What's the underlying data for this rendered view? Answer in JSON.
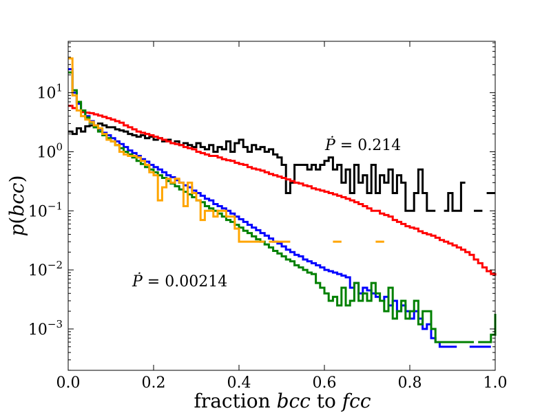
{
  "chart_data": {
    "type": "line",
    "style": "step-histogram",
    "title": "",
    "xlabel": "fraction bcc to fcc",
    "ylabel": "p(bcc)",
    "xlabel_parts": {
      "prefix": "fraction ",
      "var1": "bcc",
      "mid": " to ",
      "var2": "fcc"
    },
    "ylabel_parts": {
      "fn": "p",
      "open": "(",
      "var": "bcc",
      "close": ")"
    },
    "xlim": [
      0.0,
      1.0
    ],
    "ylim_log10": [
      -3.7,
      1.87
    ],
    "yscale": "log",
    "x_ticks": [
      "0.0",
      "0.2",
      "0.4",
      "0.6",
      "0.8",
      "1.0"
    ],
    "y_ticks": [
      {
        "base": "10",
        "exp": "1",
        "value": 10
      },
      {
        "base": "10",
        "exp": "0",
        "value": 1
      },
      {
        "base": "10",
        "exp": "−1",
        "value": 0.1
      },
      {
        "base": "10",
        "exp": "−2",
        "value": 0.01
      },
      {
        "base": "10",
        "exp": "−3",
        "value": 0.001
      }
    ],
    "annotations": [
      {
        "id": "top",
        "pdot": "Ṗ",
        "text": " = 0.214",
        "x": 0.6,
        "y": 1.05
      },
      {
        "id": "bottom",
        "pdot": "Ṗ",
        "text": " = 0.00214",
        "x": 0.15,
        "y": 0.0056
      }
    ],
    "series": [
      {
        "name": "Ṗ = 0.214",
        "color": "#000000",
        "x": [
          0.0,
          0.01,
          0.02,
          0.03,
          0.04,
          0.05,
          0.06,
          0.07,
          0.08,
          0.09,
          0.1,
          0.11,
          0.12,
          0.13,
          0.14,
          0.15,
          0.16,
          0.17,
          0.18,
          0.19,
          0.2,
          0.21,
          0.22,
          0.23,
          0.24,
          0.25,
          0.26,
          0.27,
          0.28,
          0.29,
          0.3,
          0.31,
          0.32,
          0.33,
          0.34,
          0.35,
          0.36,
          0.37,
          0.38,
          0.39,
          0.4,
          0.41,
          0.42,
          0.43,
          0.44,
          0.45,
          0.46,
          0.47,
          0.48,
          0.49,
          0.5,
          0.51,
          0.52,
          0.53,
          0.54,
          0.55,
          0.56,
          0.57,
          0.58,
          0.59,
          0.6,
          0.61,
          0.62,
          0.63,
          0.64,
          0.65,
          0.66,
          0.67,
          0.68,
          0.69,
          0.7,
          0.71,
          0.72,
          0.73,
          0.74,
          0.75,
          0.76,
          0.77,
          0.78,
          0.79,
          0.8,
          0.81,
          0.82,
          0.83,
          0.84,
          0.85,
          0.86,
          0.87,
          0.88,
          0.89,
          0.9,
          0.91,
          0.92,
          0.93,
          0.94,
          0.95,
          0.96,
          0.97,
          0.98,
          0.99,
          1.0
        ],
        "y": [
          2.2,
          2.0,
          2.5,
          2.2,
          2.7,
          2.8,
          2.6,
          3.0,
          2.8,
          2.6,
          2.6,
          2.4,
          2.3,
          2.2,
          2.0,
          1.9,
          1.8,
          1.9,
          1.7,
          1.8,
          1.6,
          1.7,
          1.5,
          1.6,
          1.4,
          1.5,
          1.3,
          1.4,
          1.3,
          1.2,
          1.4,
          1.2,
          1.1,
          1.3,
          1.0,
          1.2,
          1.1,
          1.5,
          1.0,
          1.4,
          1.6,
          1.2,
          1.0,
          1.3,
          1.1,
          1.2,
          1.0,
          1.1,
          0.9,
          0.8,
          0.6,
          0.2,
          0.3,
          0.6,
          0.6,
          0.6,
          0.5,
          0.6,
          0.5,
          0.6,
          0.7,
          0.8,
          0.5,
          0.6,
          0.3,
          0.5,
          0.2,
          0.6,
          0.3,
          0.4,
          0.2,
          0.6,
          0.2,
          0.4,
          0.3,
          0.5,
          0.2,
          0.4,
          0.3,
          0.1,
          0.1,
          0.2,
          0.5,
          0.2,
          0.1,
          0.1,
          null,
          null,
          0.1,
          0.2,
          0.1,
          0.1,
          0.3,
          null,
          null,
          0.1,
          0.1,
          null,
          0.2,
          0.2,
          0.2
        ]
      },
      {
        "name": "red",
        "color": "#ff0000",
        "x": [
          0.0,
          0.01,
          0.02,
          0.03,
          0.04,
          0.05,
          0.06,
          0.07,
          0.08,
          0.09,
          0.1,
          0.11,
          0.12,
          0.13,
          0.14,
          0.15,
          0.16,
          0.17,
          0.18,
          0.19,
          0.2,
          0.21,
          0.22,
          0.23,
          0.24,
          0.25,
          0.26,
          0.27,
          0.28,
          0.29,
          0.3,
          0.31,
          0.32,
          0.33,
          0.34,
          0.35,
          0.36,
          0.37,
          0.38,
          0.39,
          0.4,
          0.41,
          0.42,
          0.43,
          0.44,
          0.45,
          0.46,
          0.47,
          0.48,
          0.49,
          0.5,
          0.51,
          0.52,
          0.53,
          0.54,
          0.55,
          0.56,
          0.57,
          0.58,
          0.59,
          0.6,
          0.61,
          0.62,
          0.63,
          0.64,
          0.65,
          0.66,
          0.67,
          0.68,
          0.69,
          0.7,
          0.71,
          0.72,
          0.73,
          0.74,
          0.75,
          0.76,
          0.77,
          0.78,
          0.79,
          0.8,
          0.81,
          0.82,
          0.83,
          0.84,
          0.85,
          0.86,
          0.87,
          0.88,
          0.89,
          0.9,
          0.91,
          0.92,
          0.93,
          0.94,
          0.95,
          0.96,
          0.97,
          0.98,
          0.99,
          1.0
        ],
        "y": [
          6.0,
          5.5,
          5.0,
          4.7,
          4.6,
          4.5,
          4.3,
          4.1,
          3.9,
          3.7,
          3.5,
          3.3,
          3.1,
          2.8,
          2.6,
          2.4,
          2.2,
          2.1,
          2.0,
          1.9,
          1.8,
          1.7,
          1.6,
          1.5,
          1.4,
          1.35,
          1.3,
          1.2,
          1.15,
          1.1,
          1.0,
          0.95,
          0.9,
          0.85,
          0.85,
          0.8,
          0.75,
          0.72,
          0.7,
          0.65,
          0.62,
          0.6,
          0.55,
          0.52,
          0.5,
          0.48,
          0.45,
          0.42,
          0.4,
          0.38,
          0.36,
          0.34,
          0.32,
          0.3,
          0.29,
          0.27,
          0.26,
          0.24,
          0.23,
          0.22,
          0.21,
          0.2,
          0.19,
          0.18,
          0.17,
          0.16,
          0.15,
          0.14,
          0.13,
          0.12,
          0.11,
          0.1,
          0.1,
          0.09,
          0.085,
          0.08,
          0.07,
          0.065,
          0.06,
          0.055,
          0.052,
          0.05,
          0.045,
          0.042,
          0.04,
          0.038,
          0.035,
          0.032,
          0.03,
          0.028,
          0.026,
          0.024,
          0.022,
          0.02,
          0.018,
          0.015,
          0.013,
          0.011,
          0.0095,
          0.0085,
          0.008
        ]
      },
      {
        "name": "blue",
        "color": "#0000ff",
        "x": [
          0.0,
          0.01,
          0.02,
          0.03,
          0.04,
          0.05,
          0.06,
          0.07,
          0.08,
          0.09,
          0.1,
          0.11,
          0.12,
          0.13,
          0.14,
          0.15,
          0.16,
          0.17,
          0.18,
          0.19,
          0.2,
          0.21,
          0.22,
          0.23,
          0.24,
          0.25,
          0.26,
          0.27,
          0.28,
          0.29,
          0.3,
          0.31,
          0.32,
          0.33,
          0.34,
          0.35,
          0.36,
          0.37,
          0.38,
          0.39,
          0.4,
          0.41,
          0.42,
          0.43,
          0.44,
          0.45,
          0.46,
          0.47,
          0.48,
          0.49,
          0.5,
          0.51,
          0.52,
          0.53,
          0.54,
          0.55,
          0.56,
          0.57,
          0.58,
          0.59,
          0.6,
          0.61,
          0.62,
          0.63,
          0.64,
          0.65,
          0.66,
          0.67,
          0.68,
          0.69,
          0.7,
          0.71,
          0.72,
          0.73,
          0.74,
          0.75,
          0.76,
          0.77,
          0.78,
          0.79,
          0.8,
          0.81,
          0.82,
          0.83,
          0.84,
          0.85,
          0.86,
          0.87,
          0.88,
          0.89,
          0.9,
          0.91,
          0.92,
          0.93,
          0.94,
          0.95,
          0.96,
          0.97,
          0.98,
          0.99,
          1.0
        ],
        "y": [
          25,
          10,
          6.5,
          5.0,
          4.0,
          3.3,
          2.8,
          2.4,
          2.1,
          1.9,
          1.7,
          1.5,
          1.35,
          1.2,
          1.05,
          0.95,
          0.85,
          0.75,
          0.68,
          0.6,
          0.55,
          0.5,
          0.45,
          0.4,
          0.37,
          0.33,
          0.3,
          0.27,
          0.25,
          0.22,
          0.2,
          0.18,
          0.16,
          0.15,
          0.13,
          0.12,
          0.11,
          0.1,
          0.09,
          0.08,
          0.072,
          0.065,
          0.058,
          0.052,
          0.047,
          0.042,
          0.038,
          0.034,
          0.03,
          0.028,
          0.025,
          0.022,
          0.02,
          0.018,
          0.017,
          0.015,
          0.014,
          0.013,
          0.012,
          0.011,
          0.01,
          0.0095,
          0.009,
          0.0085,
          0.008,
          0.0075,
          0.005,
          0.006,
          0.004,
          0.005,
          0.0045,
          0.004,
          0.0035,
          0.003,
          0.0035,
          0.0025,
          0.003,
          0.002,
          0.0025,
          0.002,
          0.0015,
          0.002,
          0.0015,
          0.001,
          0.0012,
          0.0007,
          0.0006,
          0.0005,
          0.0005,
          0.0005,
          0.0005,
          null,
          null,
          null,
          0.0005,
          0.0005,
          0.0005,
          0.0005,
          0.0005,
          null,
          null
        ]
      },
      {
        "name": "green",
        "color": "#008000",
        "x": [
          0.0,
          0.01,
          0.02,
          0.03,
          0.04,
          0.05,
          0.06,
          0.07,
          0.08,
          0.09,
          0.1,
          0.11,
          0.12,
          0.13,
          0.14,
          0.15,
          0.16,
          0.17,
          0.18,
          0.19,
          0.2,
          0.21,
          0.22,
          0.23,
          0.24,
          0.25,
          0.26,
          0.27,
          0.28,
          0.29,
          0.3,
          0.31,
          0.32,
          0.33,
          0.34,
          0.35,
          0.36,
          0.37,
          0.38,
          0.39,
          0.4,
          0.41,
          0.42,
          0.43,
          0.44,
          0.45,
          0.46,
          0.47,
          0.48,
          0.49,
          0.5,
          0.51,
          0.52,
          0.53,
          0.54,
          0.55,
          0.56,
          0.57,
          0.58,
          0.59,
          0.6,
          0.61,
          0.62,
          0.63,
          0.64,
          0.65,
          0.66,
          0.67,
          0.68,
          0.69,
          0.7,
          0.71,
          0.72,
          0.73,
          0.74,
          0.75,
          0.76,
          0.77,
          0.78,
          0.79,
          0.8,
          0.81,
          0.82,
          0.83,
          0.84,
          0.85,
          0.86,
          0.87,
          0.88,
          0.89,
          0.9,
          0.91,
          0.92,
          0.93,
          0.94,
          0.95,
          0.96,
          0.97,
          0.98,
          0.99,
          1.0
        ],
        "y": [
          22,
          11,
          7,
          5,
          3.8,
          3.1,
          2.6,
          2.2,
          1.9,
          1.7,
          1.5,
          1.3,
          1.15,
          1.0,
          0.9,
          0.8,
          0.7,
          0.62,
          0.55,
          0.5,
          0.45,
          0.4,
          0.36,
          0.32,
          0.29,
          0.26,
          0.23,
          0.21,
          0.19,
          0.17,
          0.15,
          0.14,
          0.12,
          0.11,
          0.1,
          0.09,
          0.08,
          0.07,
          0.065,
          0.058,
          0.052,
          0.046,
          0.042,
          0.037,
          0.033,
          0.03,
          0.027,
          0.024,
          0.021,
          0.019,
          0.017,
          0.015,
          0.014,
          0.012,
          0.011,
          0.01,
          0.009,
          0.0085,
          0.006,
          0.005,
          0.004,
          0.003,
          0.0035,
          0.0025,
          0.005,
          0.0025,
          0.003,
          0.006,
          0.003,
          0.004,
          0.003,
          0.006,
          0.004,
          0.003,
          0.002,
          0.005,
          0.0015,
          0.002,
          0.003,
          0.0015,
          0.002,
          0.003,
          0.0012,
          0.002,
          0.002,
          0.001,
          0.0006,
          0.0006,
          0.0006,
          0.0006,
          0.0006,
          0.0006,
          0.0006,
          0.0006,
          0.0006,
          null,
          0.0006,
          0.0006,
          0.0006,
          0.0008,
          0.0018
        ]
      },
      {
        "name": "orange",
        "color": "#ffa500",
        "x": [
          0.0,
          0.01,
          0.02,
          0.03,
          0.04,
          0.05,
          0.06,
          0.07,
          0.08,
          0.09,
          0.1,
          0.11,
          0.12,
          0.13,
          0.14,
          0.15,
          0.16,
          0.17,
          0.18,
          0.19,
          0.2,
          0.21,
          0.22,
          0.23,
          0.24,
          0.25,
          0.26,
          0.27,
          0.28,
          0.29,
          0.3,
          0.31,
          0.32,
          0.33,
          0.34,
          0.35,
          0.36,
          0.37,
          0.38,
          0.39,
          0.4,
          0.41,
          0.42,
          0.43,
          0.44,
          0.45,
          0.46,
          0.47,
          0.48,
          0.49,
          0.5,
          0.51,
          0.52,
          0.53,
          0.54,
          0.55,
          0.56,
          0.57,
          0.58,
          0.59,
          0.6,
          0.61,
          0.62,
          0.63,
          0.64,
          0.65,
          0.66,
          0.67,
          0.68,
          0.69,
          0.7,
          0.71,
          0.72,
          0.73,
          0.74,
          0.75,
          0.76,
          0.77,
          0.78,
          0.79,
          0.8
        ],
        "y": [
          38,
          9,
          5,
          4,
          3.5,
          3.2,
          2.8,
          2.5,
          2.0,
          1.6,
          1.5,
          1.3,
          1.0,
          0.9,
          0.85,
          0.85,
          0.8,
          0.7,
          0.6,
          0.45,
          0.4,
          0.15,
          0.25,
          0.35,
          0.3,
          0.35,
          0.3,
          0.12,
          0.3,
          0.2,
          0.15,
          0.07,
          0.1,
          0.1,
          0.08,
          0.1,
          0.1,
          0.08,
          0.08,
          0.05,
          0.03,
          0.03,
          0.03,
          0.03,
          0.03,
          0.03,
          null,
          0.03,
          0.03,
          0.03,
          0.03,
          0.03,
          null,
          null,
          null,
          null,
          null,
          null,
          null,
          null,
          null,
          null,
          0.03,
          0.03,
          null,
          null,
          null,
          null,
          null,
          null,
          null,
          null,
          0.03,
          0.03,
          null,
          null,
          null,
          null,
          null,
          null,
          null
        ]
      }
    ]
  }
}
